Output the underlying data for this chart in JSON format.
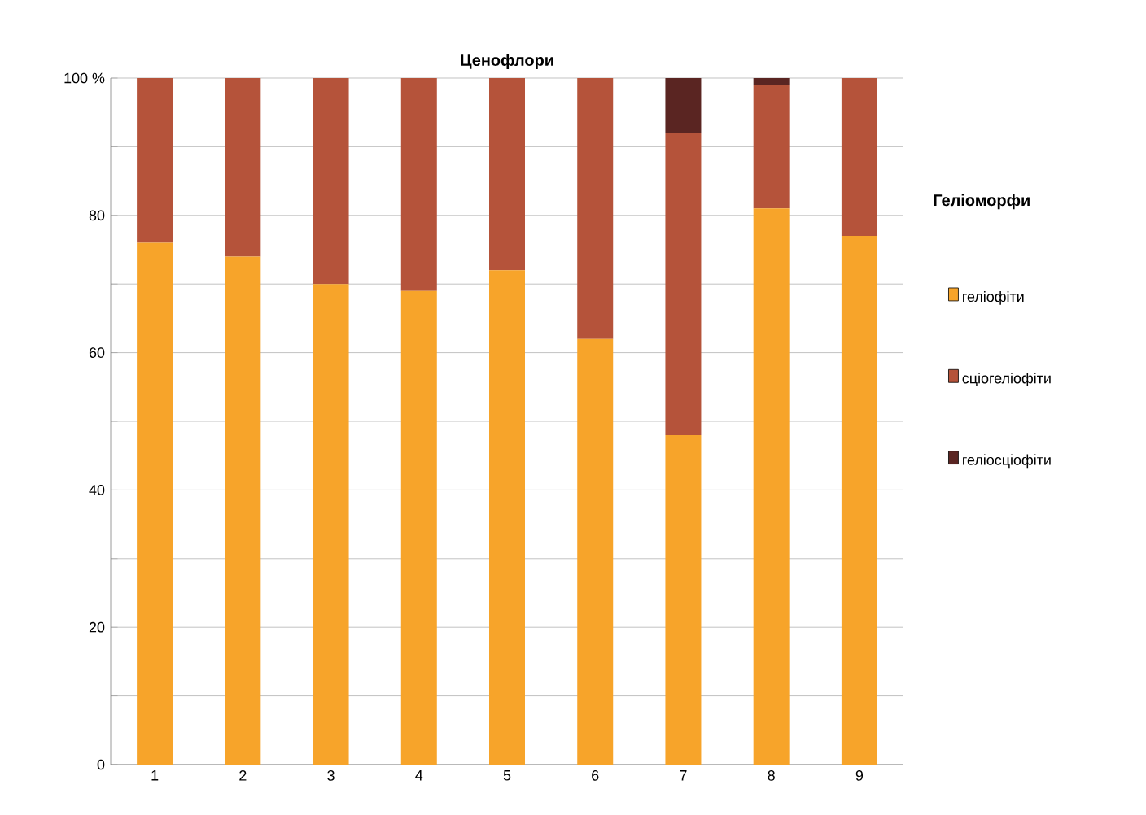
{
  "chart_data": {
    "type": "bar",
    "title": "Ценофлори",
    "stacked": true,
    "categories": [
      "1",
      "2",
      "3",
      "4",
      "5",
      "6",
      "7",
      "8",
      "9"
    ],
    "series": [
      {
        "name": "геліофіти",
        "color": "#f7a42a",
        "values": [
          76,
          74,
          70,
          69,
          72,
          62,
          48,
          81,
          77
        ]
      },
      {
        "name": "сціогеліофіти",
        "color": "#b5533a",
        "values": [
          24,
          26,
          30,
          31,
          28,
          38,
          44,
          18,
          23
        ]
      },
      {
        "name": "геліосціофіти",
        "color": "#5a2522",
        "values": [
          0,
          0,
          0,
          0,
          0,
          0,
          8,
          1,
          0
        ]
      }
    ],
    "legend_title": "Геліоморфи",
    "legend": "right",
    "ylim": [
      0,
      100
    ],
    "yticks": [
      0,
      {
        "value": 10,
        "label": null
      },
      20,
      {
        "value": 30,
        "label": null
      },
      40,
      {
        "value": 50,
        "label": null
      },
      60,
      {
        "value": 70,
        "label": null
      },
      80,
      {
        "value": 90,
        "label": null
      },
      {
        "value": 100,
        "label": "100 %"
      }
    ],
    "grid": "y"
  }
}
